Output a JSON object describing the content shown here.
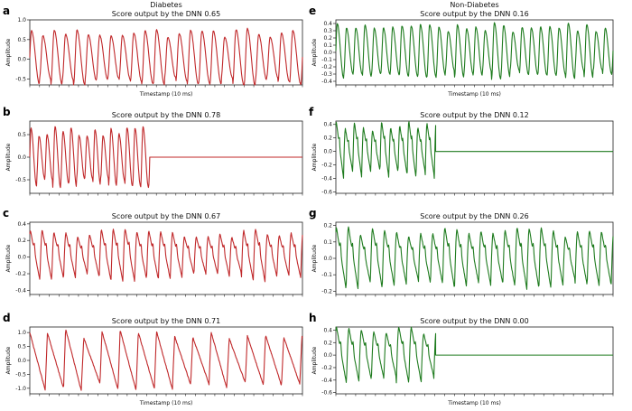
{
  "chart_data": [
    {
      "type": "line",
      "panel": "a",
      "column_heading": "Diabetes",
      "title": "Score output by the DNN  0.65",
      "xlabel": "Timestamp (10 ms)",
      "ylabel": "Amplitude",
      "ylim": [
        -0.65,
        1.0
      ],
      "yticks": [
        -0.5,
        0.0,
        0.5,
        1.0
      ],
      "yticklabels": [
        "-0.5",
        "0.0",
        "0.5",
        "1.0"
      ],
      "color": "#c0282a",
      "pattern": "sharp-rise",
      "cycles": 24,
      "signal_fraction": 1.0,
      "mean_amplitude": 0.62,
      "mean_offset": 0.05
    },
    {
      "type": "line",
      "panel": "b",
      "title": "Score output by the DNN  0.78",
      "xlabel": "",
      "ylabel": "Amplitude",
      "ylim": [
        -0.8,
        0.8
      ],
      "yticks": [
        -0.5,
        0.0,
        0.5
      ],
      "yticklabels": [
        "-0.5",
        "0.0",
        "0.5"
      ],
      "color": "#c0282a",
      "pattern": "sharp-rise",
      "cycles": 15,
      "signal_fraction": 0.44,
      "mean_amplitude": 0.58,
      "mean_offset": 0.0
    },
    {
      "type": "line",
      "panel": "c",
      "title": "Score output by the DNN  0.67",
      "xlabel": "",
      "ylabel": "Amplitude",
      "ylim": [
        -0.45,
        0.42
      ],
      "yticks": [
        -0.4,
        -0.2,
        0.0,
        0.2,
        0.4
      ],
      "yticklabels": [
        "-0.4",
        "-0.2",
        "0.0",
        "0.2",
        "0.4"
      ],
      "color": "#c0282a",
      "pattern": "notched",
      "cycles": 23,
      "signal_fraction": 1.0,
      "mean_amplitude": 0.27,
      "mean_offset": 0.02
    },
    {
      "type": "line",
      "panel": "d",
      "title": "Score output by the DNN  0.71",
      "xlabel": "Timestamp (10 ms)",
      "ylabel": "Amplitude",
      "ylim": [
        -1.2,
        1.2
      ],
      "yticks": [
        -1.0,
        -0.5,
        0.0,
        0.5,
        1.0
      ],
      "yticklabels": [
        "-1.0",
        "-0.5",
        "0.0",
        "0.5",
        "1.0"
      ],
      "color": "#c0282a",
      "pattern": "sawtooth",
      "cycles": 15,
      "signal_fraction": 1.0,
      "mean_amplitude": 0.95,
      "mean_offset": 0.0
    },
    {
      "type": "line",
      "panel": "e",
      "column_heading": "Non-Diabetes",
      "title": "Score output by the DNN  0.16",
      "xlabel": "Timestamp (10 ms)",
      "ylabel": "Amplitude",
      "ylim": [
        -0.45,
        0.45
      ],
      "yticks": [
        -0.4,
        -0.3,
        -0.2,
        -0.1,
        0.0,
        0.1,
        0.2,
        0.3,
        0.4
      ],
      "yticklabels": [
        "-0.4",
        "-0.3",
        "-0.2",
        "-0.1",
        "0.0",
        "0.1",
        "0.2",
        "0.3",
        "0.4"
      ],
      "color": "#1e7b1e",
      "pattern": "sharp-rise",
      "cycles": 30,
      "signal_fraction": 1.0,
      "mean_amplitude": 0.33,
      "mean_offset": 0.02
    },
    {
      "type": "line",
      "panel": "f",
      "title": "Score output by the DNN  0.12",
      "xlabel": "",
      "ylabel": "Amplitude",
      "ylim": [
        -0.62,
        0.45
      ],
      "yticks": [
        -0.6,
        -0.4,
        -0.2,
        0.0,
        0.2,
        0.4
      ],
      "yticklabels": [
        "-0.6",
        "-0.4",
        "-0.2",
        "0.0",
        "0.2",
        "0.4"
      ],
      "color": "#1e7b1e",
      "pattern": "notched",
      "cycles": 11,
      "signal_fraction": 0.36,
      "mean_amplitude": 0.36,
      "mean_offset": 0.02
    },
    {
      "type": "line",
      "panel": "g",
      "title": "Score output by the DNN  0.26",
      "xlabel": "",
      "ylabel": "Amplitude",
      "ylim": [
        -0.22,
        0.22
      ],
      "yticks": [
        -0.2,
        -0.1,
        0.0,
        0.1,
        0.2
      ],
      "yticklabels": [
        "-0.2",
        "-0.1",
        "0.0",
        "0.1",
        "0.2"
      ],
      "color": "#1e7b1e",
      "pattern": "notched",
      "cycles": 23,
      "signal_fraction": 1.0,
      "mean_amplitude": 0.16,
      "mean_offset": 0.0
    },
    {
      "type": "line",
      "panel": "h",
      "title": "Score output by the DNN  0.00",
      "xlabel": "Timestamp (10 ms)",
      "ylabel": "Amplitude",
      "ylim": [
        -0.62,
        0.45
      ],
      "yticks": [
        -0.6,
        -0.4,
        -0.2,
        0.0,
        0.2,
        0.4
      ],
      "yticklabels": [
        "-0.6",
        "-0.4",
        "-0.2",
        "0.0",
        "0.2",
        "0.4"
      ],
      "color": "#1e7b1e",
      "pattern": "notched",
      "cycles": 8,
      "signal_fraction": 0.36,
      "mean_amplitude": 0.38,
      "mean_offset": 0.0
    }
  ]
}
